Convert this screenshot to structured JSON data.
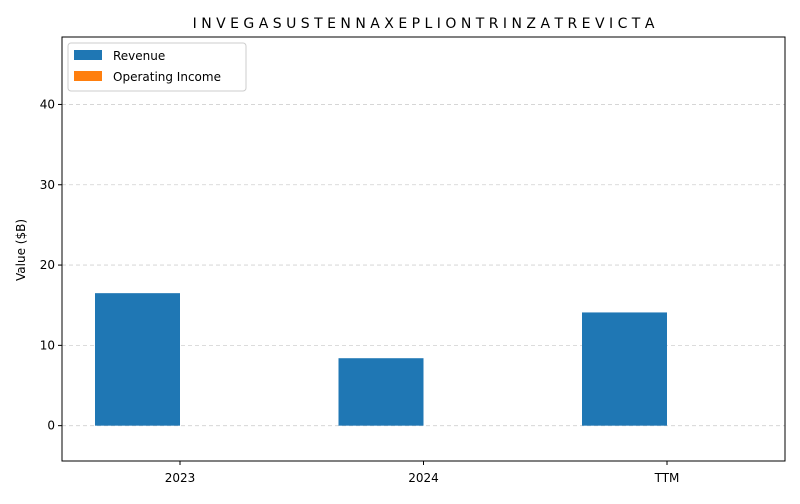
{
  "chart_data": {
    "type": "bar",
    "title": "I N V E G A S U S T E N N A X E P L I O N T R I N Z A T R E V I C T A",
    "xlabel": "",
    "ylabel": "Value ($B)",
    "categories": [
      "2023",
      "2024",
      "TTM"
    ],
    "ylim": [
      -4.4,
      48.4
    ],
    "yticks": [
      0,
      10,
      20,
      30,
      40
    ],
    "grid": "y-dashed",
    "legend": "top-left",
    "series": [
      {
        "name": "Revenue",
        "color": "#1f77b4",
        "values": [
          16.5,
          8.4,
          14.1
        ]
      },
      {
        "name": "Operating Income",
        "color": "#ff7f0e",
        "values": [
          0,
          0,
          0
        ]
      }
    ]
  }
}
